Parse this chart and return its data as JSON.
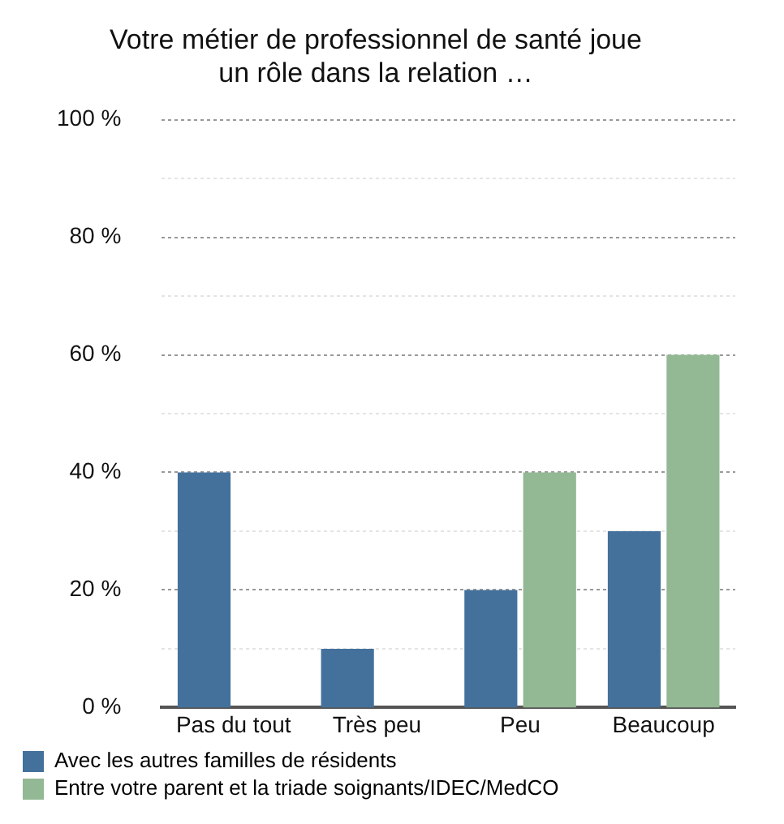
{
  "chart_data": {
    "type": "bar",
    "title": "Votre métier de professionnel de santé joue un rôle dans la relation …",
    "categories": [
      "Pas du tout",
      "Très peu",
      "Peu",
      "Beaucoup"
    ],
    "series": [
      {
        "name": "Avec les autres familles de résidents",
        "color": "#44719c",
        "values": [
          40,
          10,
          20,
          30
        ]
      },
      {
        "name": "Entre votre parent et la triade soignants/IDEC/MedCO",
        "color": "#93b894",
        "values": [
          0,
          0,
          40,
          60
        ]
      }
    ],
    "ylim": [
      0,
      100
    ],
    "yticks": [
      {
        "value": 0,
        "label": "0 %"
      },
      {
        "value": 10,
        "label": null
      },
      {
        "value": 20,
        "label": "20 %"
      },
      {
        "value": 30,
        "label": null
      },
      {
        "value": 40,
        "label": "40 %"
      },
      {
        "value": 50,
        "label": null
      },
      {
        "value": 60,
        "label": "60 %"
      },
      {
        "value": 70,
        "label": null
      },
      {
        "value": 80,
        "label": "80 %"
      },
      {
        "value": 90,
        "label": null
      },
      {
        "value": 100,
        "label": "100 %"
      }
    ],
    "grid": "y",
    "legend": "bottom left"
  }
}
